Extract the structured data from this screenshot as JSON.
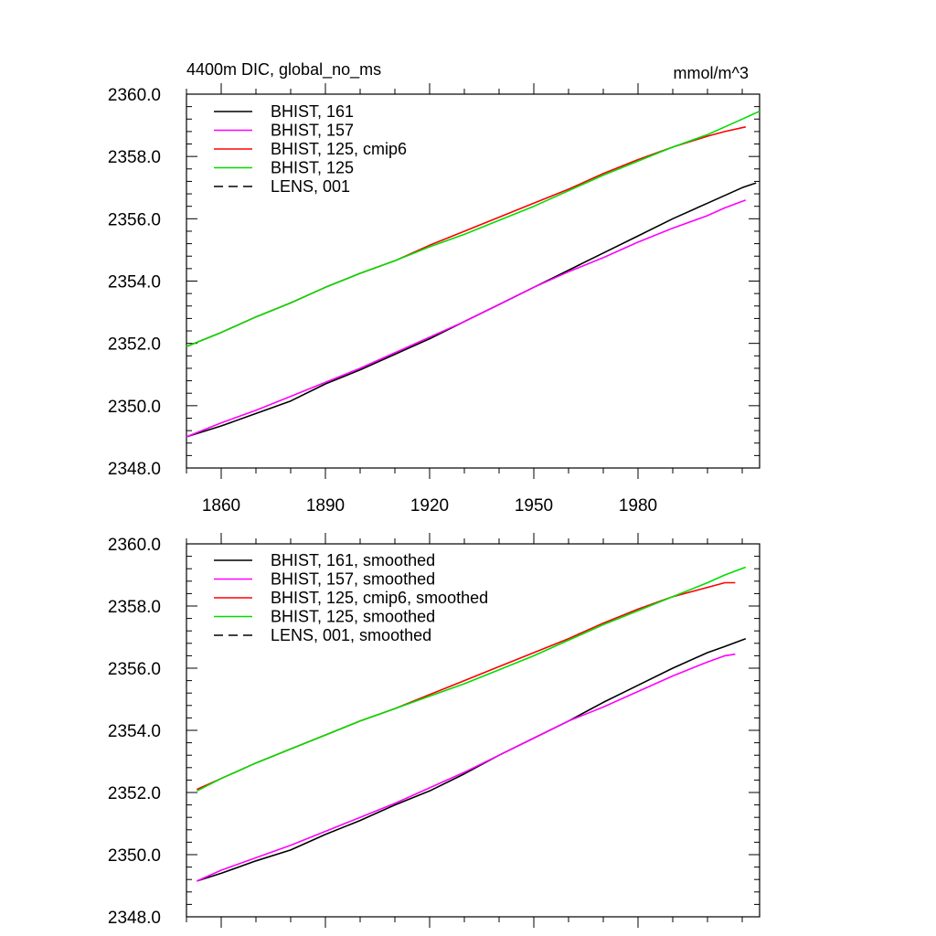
{
  "chart_data": [
    {
      "type": "line",
      "title_left": "4400m DIC, global_no_ms",
      "title_right": "mmol/m^3",
      "xlabel": "",
      "ylabel": "",
      "xlim": [
        1850,
        2015
      ],
      "ylim": [
        2348.0,
        2360.0
      ],
      "x_ticks": [
        1860,
        1890,
        1920,
        1950,
        1980
      ],
      "x_tick_labels": [
        "1860",
        "1890",
        "1920",
        "1950",
        "1980"
      ],
      "y_ticks": [
        2348,
        2350,
        2352,
        2354,
        2356,
        2358,
        2360
      ],
      "y_tick_labels": [
        "2348.0",
        "2350.0",
        "2352.0",
        "2354.0",
        "2356.0",
        "2358.0",
        "2360.0"
      ],
      "legend_position": "top-left",
      "series": [
        {
          "name": "BHIST, 161",
          "color": "#000000",
          "dash": "solid",
          "x": [
            1850,
            1860,
            1870,
            1880,
            1890,
            1900,
            1910,
            1920,
            1930,
            1940,
            1950,
            1960,
            1970,
            1980,
            1990,
            2000,
            2005,
            2010,
            2014
          ],
          "values": [
            2349.0,
            2349.35,
            2349.75,
            2350.15,
            2350.7,
            2351.15,
            2351.65,
            2352.15,
            2352.7,
            2353.25,
            2353.8,
            2354.35,
            2354.9,
            2355.45,
            2356.0,
            2356.5,
            2356.75,
            2357.0,
            2357.15
          ]
        },
        {
          "name": "BHIST, 157",
          "color": "#ff00ff",
          "dash": "solid",
          "x": [
            1850,
            1860,
            1870,
            1880,
            1890,
            1900,
            1910,
            1920,
            1930,
            1940,
            1950,
            1960,
            1970,
            1980,
            1990,
            2000,
            2005,
            2011
          ],
          "values": [
            2349.0,
            2349.45,
            2349.85,
            2350.3,
            2350.75,
            2351.2,
            2351.7,
            2352.2,
            2352.7,
            2353.25,
            2353.8,
            2354.3,
            2354.75,
            2355.25,
            2355.7,
            2356.1,
            2356.35,
            2356.6
          ]
        },
        {
          "name": "BHIST, 125, cmip6",
          "color": "#ff0000",
          "dash": "solid",
          "x": [
            1850,
            1860,
            1870,
            1880,
            1890,
            1900,
            1910,
            1920,
            1930,
            1940,
            1950,
            1960,
            1970,
            1980,
            1990,
            2000,
            2005,
            2011
          ],
          "values": [
            2351.9,
            2352.35,
            2352.85,
            2353.3,
            2353.8,
            2354.25,
            2354.65,
            2355.15,
            2355.6,
            2356.05,
            2356.5,
            2356.95,
            2357.45,
            2357.9,
            2358.3,
            2358.65,
            2358.8,
            2358.95
          ]
        },
        {
          "name": "BHIST, 125",
          "color": "#00dd00",
          "dash": "solid",
          "x": [
            1850,
            1860,
            1870,
            1880,
            1890,
            1900,
            1910,
            1920,
            1930,
            1940,
            1950,
            1960,
            1970,
            1980,
            1990,
            2000,
            2010,
            2015
          ],
          "values": [
            2351.9,
            2352.35,
            2352.85,
            2353.3,
            2353.8,
            2354.25,
            2354.65,
            2355.1,
            2355.5,
            2355.95,
            2356.4,
            2356.9,
            2357.4,
            2357.85,
            2358.3,
            2358.7,
            2359.2,
            2359.45
          ]
        },
        {
          "name": "LENS, 001",
          "color": "#000000",
          "dash": "dashed",
          "x": [],
          "values": []
        }
      ]
    },
    {
      "type": "line",
      "title_left": "",
      "title_right": "",
      "xlabel": "",
      "ylabel": "",
      "xlim": [
        1850,
        2015
      ],
      "ylim": [
        2348.0,
        2360.0
      ],
      "x_ticks": [
        1860,
        1890,
        1920,
        1950,
        1980
      ],
      "x_tick_labels": [],
      "y_ticks": [
        2348,
        2350,
        2352,
        2354,
        2356,
        2358,
        2360
      ],
      "y_tick_labels": [
        "2348.0",
        "2350.0",
        "2352.0",
        "2354.0",
        "2356.0",
        "2358.0",
        "2360.0"
      ],
      "legend_position": "top-left",
      "series": [
        {
          "name": "BHIST, 161, smoothed",
          "color": "#000000",
          "dash": "solid",
          "x": [
            1853,
            1860,
            1870,
            1880,
            1890,
            1900,
            1910,
            1920,
            1930,
            1940,
            1950,
            1960,
            1970,
            1980,
            1990,
            2000,
            2005,
            2011
          ],
          "values": [
            2349.15,
            2349.4,
            2349.8,
            2350.15,
            2350.65,
            2351.1,
            2351.6,
            2352.05,
            2352.6,
            2353.2,
            2353.75,
            2354.3,
            2354.9,
            2355.45,
            2356.0,
            2356.5,
            2356.7,
            2356.95
          ]
        },
        {
          "name": "BHIST, 157, smoothed",
          "color": "#ff00ff",
          "dash": "solid",
          "x": [
            1853,
            1860,
            1870,
            1880,
            1890,
            1900,
            1910,
            1920,
            1930,
            1940,
            1950,
            1960,
            1970,
            1980,
            1990,
            2000,
            2005,
            2008
          ],
          "values": [
            2349.15,
            2349.5,
            2349.9,
            2350.3,
            2350.75,
            2351.2,
            2351.65,
            2352.15,
            2352.65,
            2353.2,
            2353.75,
            2354.3,
            2354.75,
            2355.25,
            2355.75,
            2356.2,
            2356.4,
            2356.45
          ]
        },
        {
          "name": "BHIST, 125, cmip6, smoothed",
          "color": "#ff0000",
          "dash": "solid",
          "x": [
            1853,
            1860,
            1870,
            1880,
            1890,
            1900,
            1910,
            1920,
            1930,
            1940,
            1950,
            1960,
            1970,
            1980,
            1990,
            2000,
            2005,
            2008
          ],
          "values": [
            2352.1,
            2352.45,
            2352.95,
            2353.4,
            2353.85,
            2354.3,
            2354.7,
            2355.15,
            2355.6,
            2356.05,
            2356.5,
            2356.95,
            2357.45,
            2357.9,
            2358.3,
            2358.6,
            2358.75,
            2358.75
          ]
        },
        {
          "name": "BHIST, 125, smoothed",
          "color": "#00dd00",
          "dash": "solid",
          "x": [
            1853,
            1860,
            1870,
            1880,
            1890,
            1900,
            1910,
            1920,
            1930,
            1940,
            1950,
            1960,
            1970,
            1980,
            1990,
            2000,
            2005,
            2011
          ],
          "values": [
            2352.05,
            2352.45,
            2352.95,
            2353.4,
            2353.85,
            2354.3,
            2354.7,
            2355.1,
            2355.5,
            2355.95,
            2356.4,
            2356.9,
            2357.4,
            2357.85,
            2358.3,
            2358.75,
            2359.0,
            2359.25
          ]
        },
        {
          "name": "LENS, 001, smoothed",
          "color": "#000000",
          "dash": "dashed",
          "x": [],
          "values": []
        }
      ]
    }
  ]
}
